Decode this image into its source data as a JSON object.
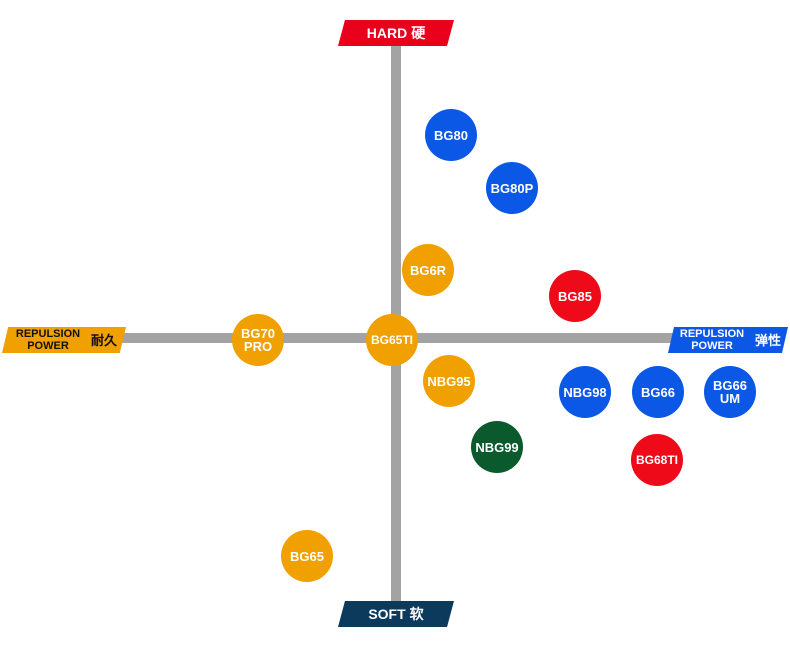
{
  "axes": {
    "top": {
      "label": "HARD",
      "zh": "硬",
      "color": "#e8001c"
    },
    "bottom": {
      "label": "SOFT",
      "zh": "软",
      "color": "#0b3a5c"
    },
    "left": {
      "label": "REPULSION\nPOWER",
      "zh": "耐久",
      "color": "#f0a000"
    },
    "right": {
      "label": "REPULSION\nPOWER",
      "zh": "弹性",
      "color": "#0b57e6"
    }
  },
  "colors": {
    "axis_line": "#a3a3a3",
    "blue": "#0b57e6",
    "red": "#ee0a18",
    "orange": "#f0a000",
    "green": "#0a5a2e"
  },
  "strings": [
    {
      "name": "BG80",
      "label": "BG80",
      "color": "blue"
    },
    {
      "name": "BG80P",
      "label": "BG80P",
      "color": "blue"
    },
    {
      "name": "BG6R",
      "label": "BG6R",
      "color": "orange"
    },
    {
      "name": "BG85",
      "label": "BG85",
      "color": "red"
    },
    {
      "name": "BG70PRO",
      "label": "BG70\nPRO",
      "color": "orange"
    },
    {
      "name": "BG65TI",
      "label": "BG65TI",
      "color": "orange"
    },
    {
      "name": "NBG95",
      "label": "NBG95",
      "color": "orange"
    },
    {
      "name": "NBG98",
      "label": "NBG98",
      "color": "blue"
    },
    {
      "name": "BG66",
      "label": "BG66",
      "color": "blue"
    },
    {
      "name": "BG66UM",
      "label": "BG66\nUM",
      "color": "blue"
    },
    {
      "name": "NBG99",
      "label": "NBG99",
      "color": "green"
    },
    {
      "name": "BG68TI",
      "label": "BG68TI",
      "color": "red"
    },
    {
      "name": "BG65",
      "label": "BG65",
      "color": "orange"
    }
  ]
}
